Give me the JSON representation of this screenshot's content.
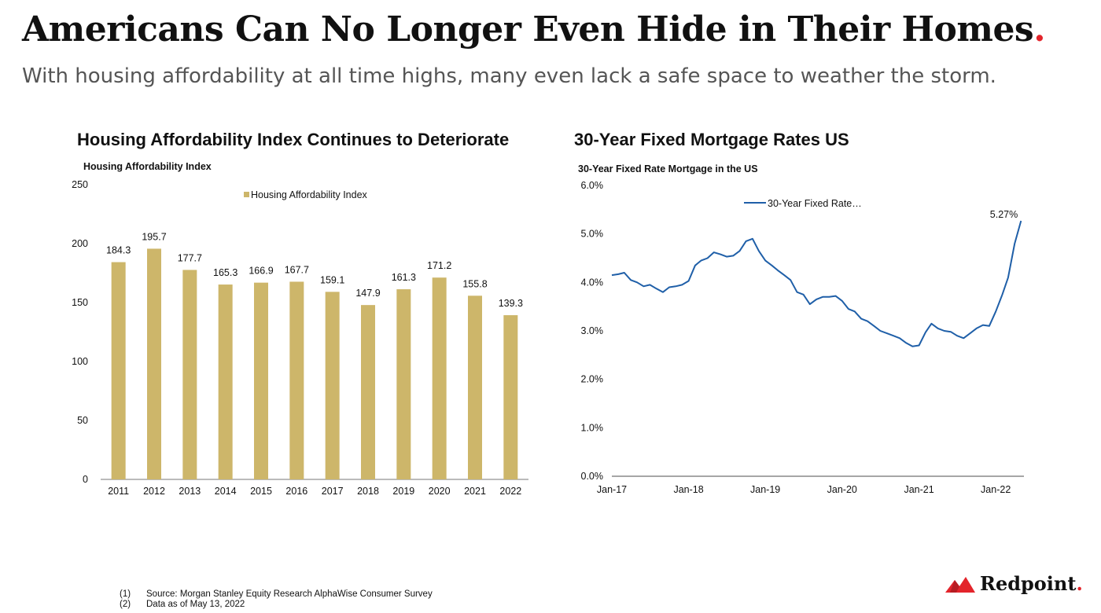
{
  "header": {
    "title": "Americans Can No Longer Even Hide in Their Homes",
    "title_dot": ".",
    "subtitle": "With housing affordability at all time highs, many even lack a safe space to weather the storm."
  },
  "left_chart": {
    "heading": "Housing Affordability Index Continues to Deteriorate"
  },
  "right_chart": {
    "heading": "30-Year Fixed Mortgage Rates US"
  },
  "footnotes": [
    {
      "num": "(1)",
      "text": "Source: Morgan Stanley Equity Research AlphaWise Consumer Survey"
    },
    {
      "num": "(2)",
      "text": "Data as of May 13, 2022"
    }
  ],
  "brand": {
    "name": "Redpoint",
    "dot": ".",
    "accent": "#e3242b"
  },
  "chart_data": [
    {
      "type": "bar",
      "title": "Housing Affordability Index",
      "ylabel": "",
      "xlabel": "",
      "categories": [
        "2011",
        "2012",
        "2013",
        "2014",
        "2015",
        "2016",
        "2017",
        "2018",
        "2019",
        "2020",
        "2021",
        "2022"
      ],
      "series": [
        {
          "name": "Housing Affordability Index",
          "values": [
            184.3,
            195.7,
            177.7,
            165.3,
            166.9,
            167.7,
            159.1,
            147.9,
            161.3,
            171.2,
            155.8,
            139.3
          ]
        }
      ],
      "ylim": [
        0,
        250
      ],
      "yticks": [
        0,
        50,
        100,
        150,
        200,
        250
      ],
      "legend": "top-center",
      "grid": false,
      "color": "#cdb66a"
    },
    {
      "type": "line",
      "title": "30-Year Fixed Rate Mortgage in the US",
      "ylabel": "",
      "xlabel": "",
      "x_ticks": [
        "Jan-17",
        "Jan-18",
        "Jan-19",
        "Jan-20",
        "Jan-21",
        "Jan-22"
      ],
      "ylim": [
        0,
        6
      ],
      "yticks": [
        "0.0%",
        "1.0%",
        "2.0%",
        "3.0%",
        "4.0%",
        "5.0%",
        "6.0%"
      ],
      "legend": "top-center",
      "grid": false,
      "color": "#1f5fa8",
      "annotation": "5.27%",
      "series": [
        {
          "name": "30-Year Fixed Rate…",
          "x": [
            "2017-01",
            "2017-02",
            "2017-03",
            "2017-04",
            "2017-05",
            "2017-06",
            "2017-07",
            "2017-08",
            "2017-09",
            "2017-10",
            "2017-11",
            "2017-12",
            "2018-01",
            "2018-02",
            "2018-03",
            "2018-04",
            "2018-05",
            "2018-06",
            "2018-07",
            "2018-08",
            "2018-09",
            "2018-10",
            "2018-11",
            "2018-12",
            "2019-01",
            "2019-02",
            "2019-03",
            "2019-04",
            "2019-05",
            "2019-06",
            "2019-07",
            "2019-08",
            "2019-09",
            "2019-10",
            "2019-11",
            "2019-12",
            "2020-01",
            "2020-02",
            "2020-03",
            "2020-04",
            "2020-05",
            "2020-06",
            "2020-07",
            "2020-08",
            "2020-09",
            "2020-10",
            "2020-11",
            "2020-12",
            "2021-01",
            "2021-02",
            "2021-03",
            "2021-04",
            "2021-05",
            "2021-06",
            "2021-07",
            "2021-08",
            "2021-09",
            "2021-10",
            "2021-11",
            "2021-12",
            "2022-01",
            "2022-02",
            "2022-03",
            "2022-04",
            "2022-05"
          ],
          "y": [
            4.15,
            4.17,
            4.2,
            4.05,
            4.0,
            3.92,
            3.95,
            3.87,
            3.8,
            3.9,
            3.92,
            3.95,
            4.03,
            4.35,
            4.45,
            4.5,
            4.62,
            4.58,
            4.53,
            4.55,
            4.65,
            4.85,
            4.9,
            4.65,
            4.45,
            4.35,
            4.25,
            4.15,
            4.05,
            3.8,
            3.75,
            3.55,
            3.65,
            3.7,
            3.7,
            3.72,
            3.62,
            3.45,
            3.4,
            3.25,
            3.2,
            3.1,
            3.0,
            2.95,
            2.9,
            2.85,
            2.75,
            2.68,
            2.7,
            2.97,
            3.15,
            3.05,
            3.0,
            2.98,
            2.9,
            2.85,
            2.95,
            3.05,
            3.12,
            3.1,
            3.4,
            3.75,
            4.1,
            4.8,
            5.27
          ]
        }
      ]
    }
  ]
}
